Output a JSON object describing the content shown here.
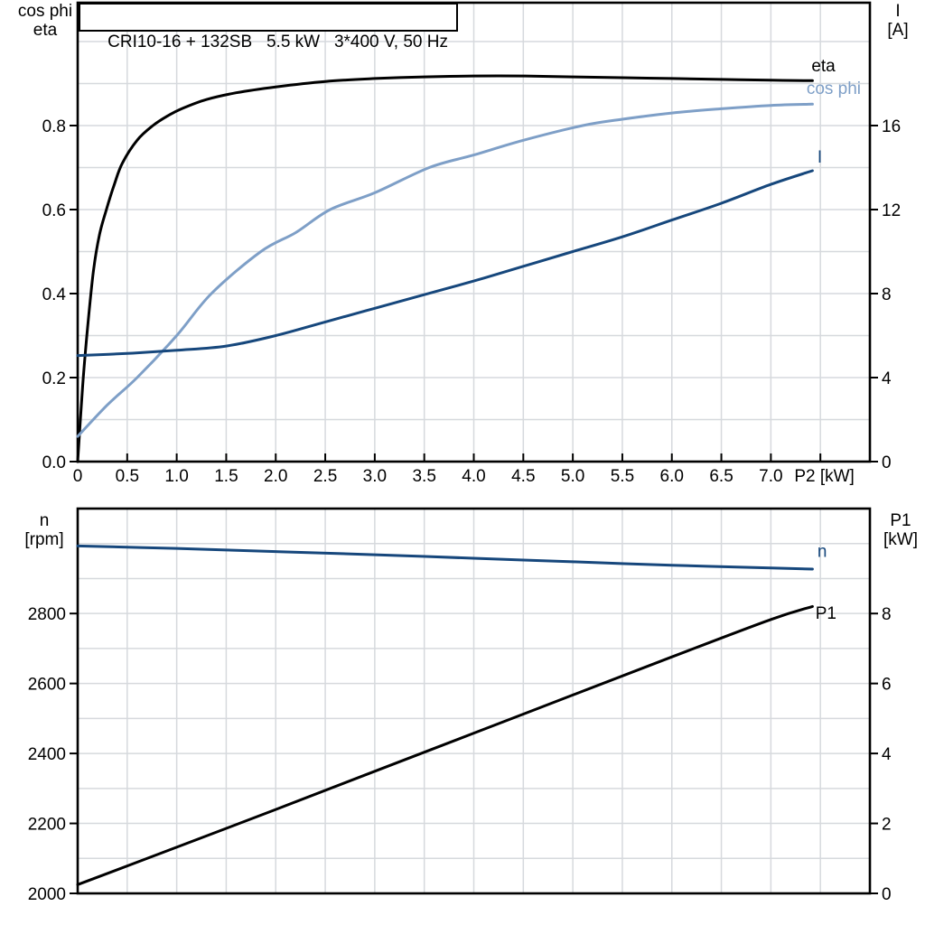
{
  "colors": {
    "black": "#000000",
    "light_blue": "#7e9fc7",
    "dark_blue": "#16477c",
    "grid": "#d6d9dd"
  },
  "chart_data": [
    {
      "type": "line",
      "title": "CRI10-16 + 132SB   5.5 kW   3*400 V, 50 Hz",
      "x_axis": {
        "label": "P2 [kW]",
        "label_x": 7.54,
        "min": 0,
        "max": 8,
        "tick_values": [
          0,
          0.5,
          1,
          1.5,
          2,
          2.5,
          3,
          3.5,
          4,
          4.5,
          5,
          5.5,
          6,
          6.5,
          7,
          7.5
        ],
        "tick_labels": [
          "0",
          "0.5",
          "1.0",
          "1.5",
          "2.0",
          "2.5",
          "3.0",
          "3.5",
          "4.0",
          "4.5",
          "5.0",
          "5.5",
          "6.0",
          "6.5",
          "7.0",
          ""
        ],
        "grid_values": [
          0.5,
          1,
          1.5,
          2,
          2.5,
          3,
          3.5,
          4,
          4.5,
          5,
          5.5,
          6,
          6.5,
          7,
          7.5
        ]
      },
      "left_axis": {
        "title_lines": [
          "cos phi",
          "eta"
        ],
        "min": 0,
        "max": 1.0925,
        "tick_values": [
          0,
          0.2,
          0.4,
          0.6,
          0.8
        ],
        "tick_labels": [
          "0.0",
          "0.2",
          "0.4",
          "0.6",
          "0.8"
        ],
        "grid_values": [
          0.1,
          0.2,
          0.3,
          0.4,
          0.5,
          0.6,
          0.7,
          0.8,
          0.9,
          1.0
        ]
      },
      "right_axis": {
        "title_lines": [
          "I",
          "[A]"
        ],
        "min": 0,
        "max": 21.85,
        "tick_values": [
          0,
          4,
          8,
          12,
          16
        ],
        "tick_labels": [
          "0",
          "4",
          "8",
          "12",
          "16"
        ]
      },
      "series": [
        {
          "name": "eta",
          "axis": "left",
          "color_key": "black",
          "label": "eta",
          "label_pos": [
            7.41,
            0.929
          ],
          "points": [
            [
              0,
              0
            ],
            [
              0.05,
              0.18
            ],
            [
              0.1,
              0.32
            ],
            [
              0.16,
              0.455
            ],
            [
              0.22,
              0.54
            ],
            [
              0.29,
              0.6
            ],
            [
              0.37,
              0.66
            ],
            [
              0.45,
              0.71
            ],
            [
              0.6,
              0.765
            ],
            [
              0.76,
              0.8
            ],
            [
              0.9,
              0.822
            ],
            [
              1.05,
              0.84
            ],
            [
              1.3,
              0.862
            ],
            [
              1.6,
              0.878
            ],
            [
              2,
              0.892
            ],
            [
              2.5,
              0.905
            ],
            [
              3,
              0.912
            ],
            [
              3.5,
              0.916
            ],
            [
              4,
              0.918
            ],
            [
              4.5,
              0.918
            ],
            [
              5,
              0.916
            ],
            [
              5.5,
              0.914
            ],
            [
              6,
              0.912
            ],
            [
              6.5,
              0.91
            ],
            [
              7,
              0.908
            ],
            [
              7.42,
              0.907
            ]
          ]
        },
        {
          "name": "cos-phi",
          "axis": "left",
          "color_key": "light_blue",
          "label": "cos phi",
          "label_pos": [
            7.36,
            0.875
          ],
          "points": [
            [
              0,
              0.06
            ],
            [
              0.3,
              0.135
            ],
            [
              0.6,
              0.2
            ],
            [
              1,
              0.3
            ],
            [
              1.35,
              0.4
            ],
            [
              1.85,
              0.5
            ],
            [
              2.2,
              0.545
            ],
            [
              2.55,
              0.6
            ],
            [
              3,
              0.64
            ],
            [
              3.55,
              0.7
            ],
            [
              4,
              0.73
            ],
            [
              4.5,
              0.765
            ],
            [
              5.1,
              0.8
            ],
            [
              5.5,
              0.815
            ],
            [
              6,
              0.83
            ],
            [
              6.5,
              0.84
            ],
            [
              7,
              0.848
            ],
            [
              7.42,
              0.851
            ]
          ]
        },
        {
          "name": "I",
          "axis": "right",
          "color_key": "dark_blue",
          "label": "I",
          "label_pos": [
            7.47,
            14.24
          ],
          "points": [
            [
              0,
              5.05
            ],
            [
              0.5,
              5.15
            ],
            [
              1,
              5.3
            ],
            [
              1.5,
              5.5
            ],
            [
              2,
              6
            ],
            [
              2.5,
              6.65
            ],
            [
              3,
              7.3
            ],
            [
              3.5,
              7.95
            ],
            [
              4,
              8.6
            ],
            [
              4.5,
              9.3
            ],
            [
              5,
              10
            ],
            [
              5.5,
              10.7
            ],
            [
              6,
              11.5
            ],
            [
              6.5,
              12.3
            ],
            [
              7,
              13.2
            ],
            [
              7.42,
              13.85
            ]
          ]
        }
      ]
    },
    {
      "type": "line",
      "x_axis": {
        "min": 0,
        "max": 8,
        "tick_values": [],
        "tick_labels": [],
        "grid_values": [
          0.5,
          1,
          1.5,
          2,
          2.5,
          3,
          3.5,
          4,
          4.5,
          5,
          5.5,
          6,
          6.5,
          7,
          7.5
        ]
      },
      "left_axis": {
        "title_lines": [
          "n",
          "[rpm]"
        ],
        "min": 2000,
        "max": 3100,
        "tick_values": [
          2000,
          2200,
          2400,
          2600,
          2800
        ],
        "tick_labels": [
          "2000",
          "2200",
          "2400",
          "2600",
          "2800"
        ],
        "grid_values": [
          2100,
          2200,
          2300,
          2400,
          2500,
          2600,
          2700,
          2800,
          2900,
          3000
        ]
      },
      "right_axis": {
        "title_lines": [
          "P1",
          "[kW]"
        ],
        "min": 0,
        "max": 11,
        "tick_values": [
          0,
          2,
          4,
          6,
          8
        ],
        "tick_labels": [
          "0",
          "2",
          "4",
          "6",
          "8"
        ]
      },
      "series": [
        {
          "name": "n",
          "axis": "left",
          "color_key": "dark_blue",
          "label": "n",
          "label_pos": [
            7.47,
            2962
          ],
          "points": [
            [
              0,
              2993
            ],
            [
              1,
              2986
            ],
            [
              2,
              2977
            ],
            [
              3,
              2968
            ],
            [
              4,
              2958
            ],
            [
              5,
              2948
            ],
            [
              6,
              2938
            ],
            [
              7,
              2930
            ],
            [
              7.42,
              2927
            ]
          ]
        },
        {
          "name": "P1",
          "axis": "right",
          "color_key": "black",
          "label": "P1",
          "label_pos": [
            7.45,
            7.85
          ],
          "points": [
            [
              0,
              0.25
            ],
            [
              1,
              1.32
            ],
            [
              2,
              2.4
            ],
            [
              3,
              3.49
            ],
            [
              4,
              4.58
            ],
            [
              5,
              5.67
            ],
            [
              6,
              6.76
            ],
            [
              7,
              7.83
            ],
            [
              7.42,
              8.2
            ]
          ]
        }
      ]
    }
  ]
}
